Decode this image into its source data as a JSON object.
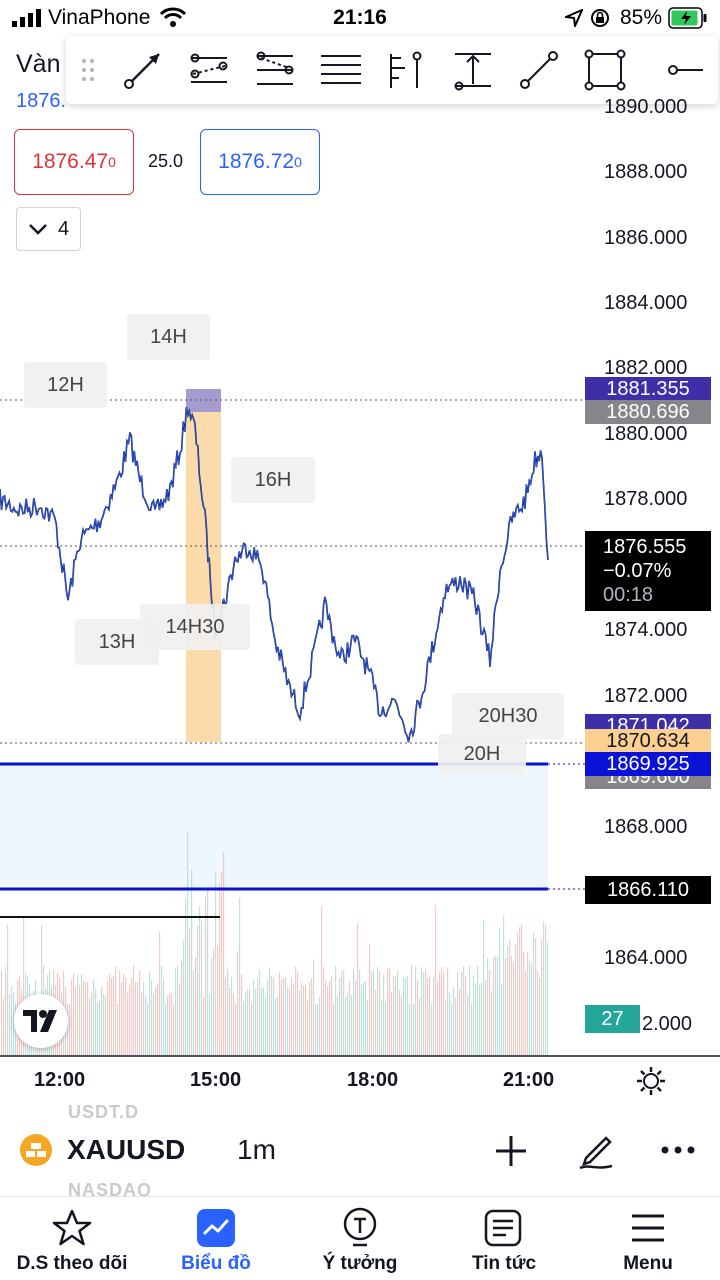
{
  "status_bar": {
    "carrier": "VinaPhone",
    "time": "21:16",
    "battery": "85%"
  },
  "symbol": {
    "title": "Vàn",
    "price_partial": "1876.",
    "name": "XAUUSD",
    "interval": "1m"
  },
  "quote": {
    "sell_main": "1876.47",
    "sell_sup": "0",
    "spread": "25.0",
    "buy_main": "1876.72",
    "buy_sup": "0"
  },
  "collapse": {
    "count": "4"
  },
  "toolbar": {
    "items": [
      "grip-icon",
      "trend-line-icon",
      "pitchfork-icon",
      "fib-channel-icon",
      "parallel-lines-icon",
      "horizontal-ray-icon",
      "vertical-line-icon",
      "price-range-icon",
      "segment-icon",
      "rectangle-icon",
      "horizontal-line-icon"
    ]
  },
  "price_axis": {
    "labels": [
      "1890.000",
      "1888.000",
      "1886.000",
      "1884.000",
      "1882.000",
      "1880.000",
      "1878.000",
      "1874.000",
      "1872.000",
      "1868.000",
      "1864.000",
      "2.000"
    ],
    "tags": {
      "high1": "1881.355",
      "high2": "1880.696",
      "last_price": "1876.555",
      "last_change": "−0.07%",
      "countdown": "00:18",
      "hidden_low": "1871.042",
      "orange": "1870.634",
      "blue": "1869.925",
      "under_blue": "1869.600",
      "lower_line": "1866.110",
      "volume": "27"
    }
  },
  "sessions": [
    "12H",
    "14H",
    "16H",
    "13H",
    "14H30",
    "20H30",
    "20H"
  ],
  "time_axis": [
    "12:00",
    "15:00",
    "18:00",
    "21:00"
  ],
  "ghost_list": [
    "USDT.D",
    "NASDAQ"
  ],
  "nav": [
    "D.S theo dõi",
    "Biểu đồ",
    "Ý tưởng",
    "Tin tức",
    "Menu"
  ],
  "colors": {
    "accent": "#2962ff",
    "down": "#e0313a",
    "highlight_orange": "#fcd9a6",
    "zone_blue": "#f2f9ff",
    "line_blue": "#0a12d6",
    "tag_purple": "#3d2fa7"
  }
}
